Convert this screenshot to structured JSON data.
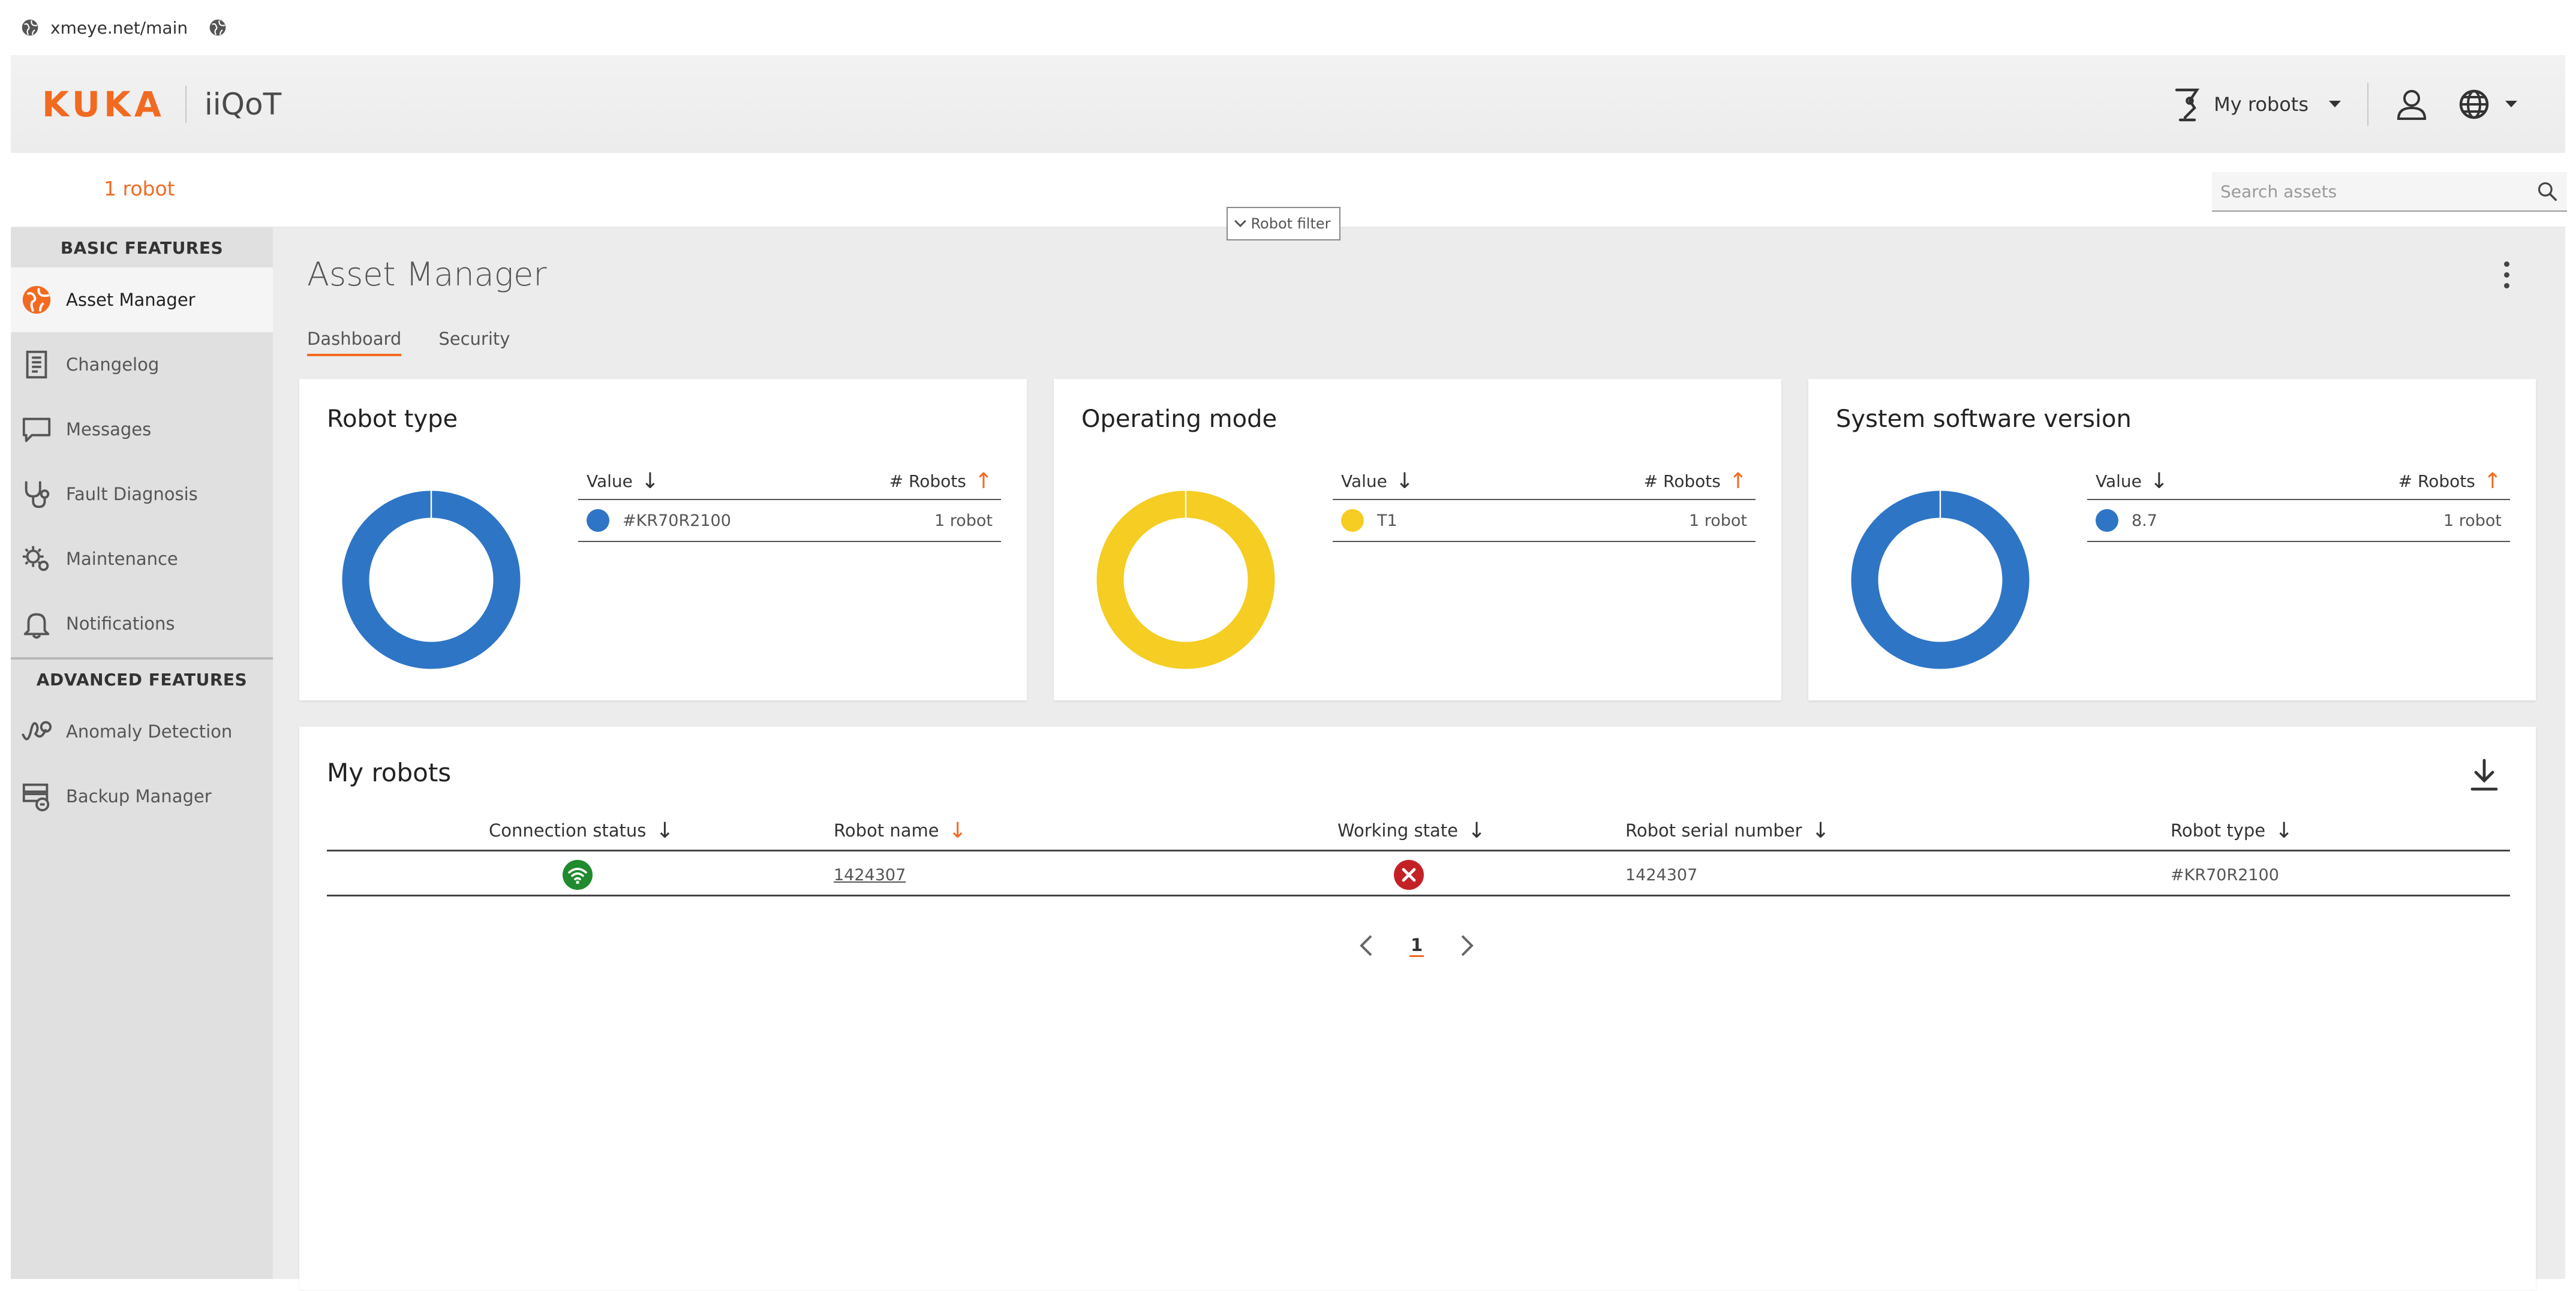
{
  "browser": {
    "url": "xmeye.net/main"
  },
  "header": {
    "brand": "KUKA",
    "product": "iiQoT",
    "my_robots_label": "My robots"
  },
  "filter_bar": {
    "robot_count": "1 robot",
    "robot_filter_label": "Robot filter",
    "search_placeholder": "Search assets"
  },
  "sidebar": {
    "basic_title": "BASIC FEATURES",
    "basic_items": [
      {
        "label": "Asset Manager",
        "icon": "globe-icon",
        "active": true
      },
      {
        "label": "Changelog",
        "icon": "document-icon"
      },
      {
        "label": "Messages",
        "icon": "chat-icon"
      },
      {
        "label": "Fault Diagnosis",
        "icon": "stethoscope-icon"
      },
      {
        "label": "Maintenance",
        "icon": "gears-icon"
      },
      {
        "label": "Notifications",
        "icon": "bell-icon"
      }
    ],
    "advanced_title": "ADVANCED FEATURES",
    "advanced_items": [
      {
        "label": "Anomaly Detection",
        "icon": "anomaly-icon"
      },
      {
        "label": "Backup Manager",
        "icon": "backup-icon"
      }
    ]
  },
  "main": {
    "title": "Asset Manager",
    "tabs": [
      {
        "label": "Dashboard",
        "active": true
      },
      {
        "label": "Security"
      }
    ]
  },
  "cards": [
    {
      "title": "Robot type",
      "col_value": "Value",
      "col_count": "# Robots",
      "rows": [
        {
          "value": "#KR70R2100",
          "count": "1 robot"
        }
      ],
      "color": "#2e75c6"
    },
    {
      "title": "Operating mode",
      "col_value": "Value",
      "col_count": "# Robots",
      "rows": [
        {
          "value": "T1",
          "count": "1 robot"
        }
      ],
      "color": "#f5cd23"
    },
    {
      "title": "System software version",
      "col_value": "Value",
      "col_count": "# Robots",
      "rows": [
        {
          "value": "8.7",
          "count": "1 robot"
        }
      ],
      "color": "#2e75c6"
    }
  ],
  "robots_table": {
    "title": "My robots",
    "columns": [
      "Connection status",
      "Robot name",
      "Working state",
      "Robot serial number",
      "Robot type"
    ],
    "rows": [
      {
        "connection_status": "connected",
        "robot_name": "1424307",
        "working_state": "error",
        "serial_number": "1424307",
        "robot_type": "#KR70R2100"
      }
    ],
    "page": "1"
  },
  "colors": {
    "accent": "#f26a21",
    "connected": "#1f8a2e",
    "error": "#c42127",
    "blue": "#2e75c6",
    "yellow": "#f5cd23"
  }
}
